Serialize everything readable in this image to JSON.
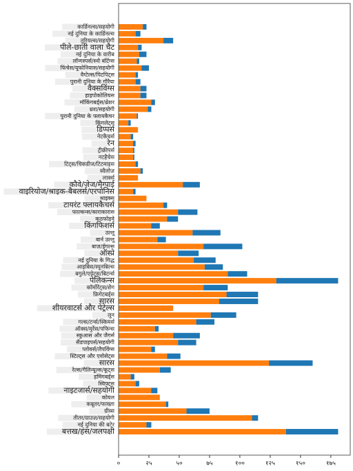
{
  "chart_data": {
    "type": "barh-stacked",
    "categories": [
      "कार्डिनल्स/सहयोगी",
      "नई दुनिया के कार्डिनल्स",
      "तुरियल्स/सहयोगी",
      "पीले-छाती वाला चैट",
      "नई दुनिया के वारीब",
      "लॉन्गस्पर्स/स्नो बंटिंग्स",
      "फिंचेस/यूफोनियास/सहयोगी",
      "वैग्टेल्स/पिटपिट्स",
      "पुरानी दुनिया के गौरैया",
      "वैक्सविंग्स",
      "हाइपोकोलियस",
      "मॉकिंगबर्ड्स/थ्रेशर",
      "थ्रश/सहयोगी",
      "पुरानी दुनिया के फ्लायकैचर",
      "किंगलेट्स",
      "डिप्पर्स",
      "नेटकैचर्स",
      "रेन",
      "ट्रीक्रीपर्स",
      "नटहैचेस",
      "टिट्स/चिकडीज/टिटमाइस",
      "स्वैलोज़",
      "लार्क्स",
      "कौवे/जेज/मैग्पाई",
      "वाइरियोज/श्राइक-बैबलर्स/एरपोनिस",
      "श्राइक्स",
      "टायरंट फ्लायकैचर्स",
      "फाल्कन्स/काराकारास",
      "कठफोड़वे",
      "किंगफिशर्स",
      "उल्लू",
      "बार्न उल्लू",
      "बाज़/ईगल्स",
      "ऑस्प्रे",
      "नई दुनिया के गिद्ध",
      "आइबिस/स्पूनबिल्स",
      "बगुले/एग्रेट्स/बिटर्न्स",
      "पेलिकन्स",
      "कॉर्मोरेंट्स/शैग",
      "फ्रिगेटबर्ड्स",
      "सारस",
      "शीयरवाटर्स और पेट्रेल्स",
      "लून",
      "गल्स/टर्न्स/स्किमर्स",
      "ऑक्स/मुर्रेस/पफिन्स",
      "स्कुआस और जैगर्स",
      "सैंडपाइपर्स/सहयोगी",
      "प्लोवर्स/लैपविंग्स",
      "स्टिल्ट्स और एवोसेट्स",
      "सारस",
      "रेल्स/गैलिन्यूल्स/कूट्स",
      "हमिंगबर्ड्स",
      "स्विफ्ट्स",
      "नाइटजार्स/सहयोगी",
      "कोयल",
      "कबूतर/फाख्ता",
      "ग्रीब्स",
      "तीतर/ग्राउज़/सहयोगी",
      "नई दुनिया की बटेर",
      "बत्तख/हंस/जलपक्षी"
    ],
    "series": [
      {
        "color": "#ff7f0e",
        "values": [
          20,
          14,
          37,
          16,
          17,
          15,
          19,
          14,
          14,
          18,
          18,
          27,
          24,
          15,
          8,
          16,
          10,
          12,
          12,
          12,
          14,
          18,
          16,
          53,
          12,
          23,
          37,
          49,
          40,
          27,
          61,
          32,
          70,
          49,
          62,
          71,
          90,
          130,
          70,
          89,
          83,
          45,
          76,
          64,
          30,
          45,
          49,
          27,
          40,
          124,
          34,
          10,
          14,
          27,
          34,
          39,
          56,
          110,
          23,
          138
        ]
      },
      {
        "color": "#1f77b4",
        "values": [
          3,
          4,
          8,
          3,
          6,
          2,
          6,
          2,
          4,
          5,
          5,
          3,
          3,
          1,
          2,
          0,
          2,
          2,
          1,
          1,
          2,
          2,
          0,
          14,
          2,
          0,
          3,
          16,
          9,
          7,
          23,
          7,
          32,
          17,
          18,
          15,
          16,
          51,
          20,
          26,
          32,
          0,
          21,
          15,
          3,
          22,
          15,
          3,
          11,
          36,
          9,
          3,
          3,
          5,
          0,
          2,
          19,
          5,
          4,
          43
        ]
      }
    ],
    "xlim": [
      0,
      191
    ],
    "xticks": [
      {
        "value": 0,
        "label": "०"
      },
      {
        "value": 25,
        "label": "२५"
      },
      {
        "value": 50,
        "label": "५०"
      },
      {
        "value": 75,
        "label": "७५"
      },
      {
        "value": 100,
        "label": "१००"
      },
      {
        "value": 125,
        "label": "१२५"
      },
      {
        "value": 150,
        "label": "१५०"
      },
      {
        "value": 175,
        "label": "१७५"
      }
    ]
  }
}
